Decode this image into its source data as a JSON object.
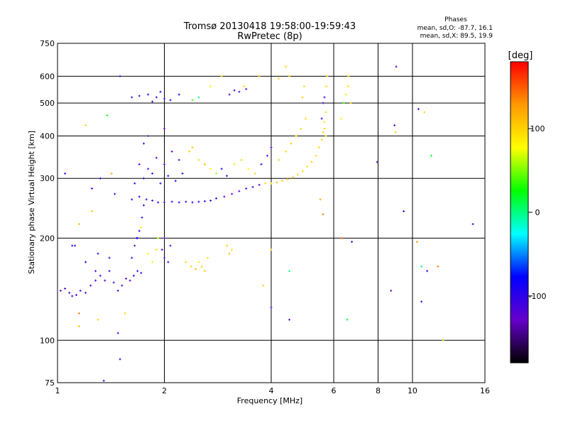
{
  "chart_data": {
    "type": "scatter",
    "title": "Tromsø 20130418 19:58:00-19:59:43",
    "subtitle": "RwPretec (8p)",
    "xlabel": "Frequency [MHz]",
    "ylabel": "Stationary phase Virtual Height [km]",
    "x_scale": "log",
    "y_scale": "log",
    "xlim": [
      1,
      16
    ],
    "ylim": [
      75,
      750
    ],
    "x_ticks": [
      "1",
      "2",
      "4",
      "6",
      "8",
      "10",
      "16"
    ],
    "y_ticks": [
      "75",
      "100",
      "200",
      "300",
      "400",
      "500",
      "600",
      "750"
    ],
    "grid": true,
    "phases_box": {
      "title": "Phases",
      "line_o": "mean, sd,O: -87.7, 16.1",
      "line_x": "mean, sd,X:  89.5, 19.9"
    },
    "colorbar": {
      "label": "[deg]",
      "range": [
        -180,
        180
      ],
      "ticks": [
        "100",
        "0",
        "-100"
      ],
      "stops": [
        "#ff0000",
        "#ff9900",
        "#ffff00",
        "#00ff00",
        "#00ffff",
        "#0000ff",
        "#6600cc",
        "#000000"
      ]
    },
    "points": [
      [
        1.02,
        140,
        -110
      ],
      [
        1.05,
        142,
        -115
      ],
      [
        1.08,
        138,
        -120
      ],
      [
        1.1,
        135,
        -112
      ],
      [
        1.13,
        136,
        -118
      ],
      [
        1.16,
        140,
        -108
      ],
      [
        1.2,
        138,
        -114
      ],
      [
        1.24,
        145,
        -110
      ],
      [
        1.28,
        150,
        -106
      ],
      [
        1.32,
        155,
        -112
      ],
      [
        1.36,
        150,
        -118
      ],
      [
        1.4,
        160,
        -102
      ],
      [
        1.44,
        148,
        -110
      ],
      [
        1.48,
        140,
        -108
      ],
      [
        1.52,
        145,
        -116
      ],
      [
        1.56,
        152,
        -120
      ],
      [
        1.6,
        150,
        -110
      ],
      [
        1.64,
        155,
        -98
      ],
      [
        1.68,
        160,
        -104
      ],
      [
        1.72,
        158,
        -112
      ],
      [
        1.1,
        190,
        -100
      ],
      [
        1.2,
        170,
        -95
      ],
      [
        1.3,
        180,
        -105
      ],
      [
        1.4,
        175,
        -90
      ],
      [
        1.28,
        160,
        -118
      ],
      [
        1.62,
        175,
        -100
      ],
      [
        1.65,
        190,
        -110
      ],
      [
        1.67,
        200,
        -95
      ],
      [
        1.7,
        210,
        -105
      ],
      [
        1.73,
        230,
        -100
      ],
      [
        1.75,
        250,
        -92
      ],
      [
        1.8,
        180,
        80
      ],
      [
        1.85,
        170,
        70
      ],
      [
        1.9,
        185,
        95
      ],
      [
        1.92,
        200,
        60
      ],
      [
        1.97,
        185,
        -115
      ],
      [
        2.0,
        175,
        -120
      ],
      [
        2.05,
        170,
        -110
      ],
      [
        2.08,
        190,
        -118
      ],
      [
        2.0,
        200,
        -125
      ],
      [
        2.3,
        170,
        100
      ],
      [
        2.38,
        165,
        95
      ],
      [
        2.45,
        162,
        110
      ],
      [
        2.5,
        170,
        90
      ],
      [
        2.55,
        165,
        100
      ],
      [
        2.6,
        160,
        105
      ],
      [
        2.65,
        175,
        95
      ],
      [
        3.0,
        190,
        100
      ],
      [
        3.05,
        180,
        110
      ],
      [
        3.1,
        185,
        90
      ],
      [
        1.62,
        260,
        -100
      ],
      [
        1.7,
        265,
        -95
      ],
      [
        1.78,
        260,
        -105
      ],
      [
        1.85,
        258,
        -100
      ],
      [
        1.92,
        255,
        -98
      ],
      [
        2.0,
        255,
        -104
      ],
      [
        2.1,
        256,
        -100
      ],
      [
        2.2,
        255,
        -96
      ],
      [
        2.3,
        256,
        -102
      ],
      [
        2.4,
        255,
        -100
      ],
      [
        2.5,
        256,
        -98
      ],
      [
        2.6,
        257,
        -104
      ],
      [
        2.7,
        258,
        -100
      ],
      [
        2.8,
        262,
        -96
      ],
      [
        2.95,
        265,
        -120
      ],
      [
        3.1,
        270,
        -125
      ],
      [
        3.25,
        275,
        -118
      ],
      [
        3.4,
        280,
        -122
      ],
      [
        3.55,
        283,
        -110
      ],
      [
        3.7,
        287,
        -115
      ],
      [
        3.85,
        290,
        95
      ],
      [
        4.0,
        290,
        100
      ],
      [
        4.15,
        292,
        110
      ],
      [
        4.3,
        295,
        105
      ],
      [
        4.45,
        298,
        100
      ],
      [
        4.6,
        302,
        108
      ],
      [
        4.75,
        308,
        100
      ],
      [
        4.9,
        315,
        95
      ],
      [
        5.05,
        325,
        90
      ],
      [
        5.2,
        335,
        100
      ],
      [
        5.35,
        350,
        95
      ],
      [
        5.45,
        370,
        100
      ],
      [
        5.55,
        390,
        105
      ],
      [
        5.6,
        410,
        100
      ],
      [
        5.65,
        440,
        95
      ],
      [
        5.7,
        470,
        100
      ],
      [
        1.65,
        290,
        -95
      ],
      [
        1.75,
        300,
        -100
      ],
      [
        1.85,
        310,
        -98
      ],
      [
        1.95,
        290,
        -104
      ],
      [
        2.05,
        305,
        -100
      ],
      [
        2.15,
        295,
        -96
      ],
      [
        2.25,
        310,
        -102
      ],
      [
        1.7,
        330,
        -110
      ],
      [
        1.8,
        320,
        -115
      ],
      [
        1.9,
        345,
        -108
      ],
      [
        2.0,
        330,
        -112
      ],
      [
        1.75,
        380,
        -100
      ],
      [
        1.8,
        400,
        -115
      ],
      [
        2.0,
        420,
        -110
      ],
      [
        2.1,
        360,
        -120
      ],
      [
        2.2,
        340,
        -118
      ],
      [
        2.35,
        360,
        100
      ],
      [
        2.4,
        370,
        105
      ],
      [
        2.5,
        340,
        95
      ],
      [
        2.6,
        330,
        110
      ],
      [
        2.7,
        320,
        85
      ],
      [
        2.8,
        310,
        60
      ],
      [
        2.9,
        320,
        -100
      ],
      [
        3.0,
        305,
        -110
      ],
      [
        3.15,
        330,
        90
      ],
      [
        3.3,
        340,
        100
      ],
      [
        3.45,
        320,
        80
      ],
      [
        3.6,
        310,
        100
      ],
      [
        3.75,
        330,
        -100
      ],
      [
        3.9,
        350,
        -120
      ],
      [
        4.0,
        370,
        -110
      ],
      [
        4.2,
        340,
        100
      ],
      [
        4.4,
        360,
        95
      ],
      [
        4.55,
        380,
        105
      ],
      [
        4.7,
        400,
        90
      ],
      [
        4.85,
        420,
        100
      ],
      [
        5.0,
        450,
        95
      ],
      [
        5.6,
        500,
        -110
      ],
      [
        5.65,
        520,
        -115
      ],
      [
        5.72,
        560,
        95
      ],
      [
        5.75,
        600,
        100
      ],
      [
        5.55,
        450,
        -100
      ],
      [
        4.9,
        520,
        100
      ],
      [
        4.95,
        560,
        95
      ],
      [
        4.2,
        590,
        100
      ],
      [
        4.4,
        640,
        100
      ],
      [
        4.5,
        600,
        105
      ],
      [
        3.7,
        600,
        110
      ],
      [
        3.35,
        560,
        95
      ],
      [
        2.9,
        600,
        100
      ],
      [
        3.05,
        530,
        -110
      ],
      [
        3.15,
        545,
        -115
      ],
      [
        3.25,
        540,
        -112
      ],
      [
        3.4,
        550,
        -120
      ],
      [
        1.62,
        520,
        -100
      ],
      [
        1.7,
        525,
        -104
      ],
      [
        1.8,
        530,
        -98
      ],
      [
        1.9,
        520,
        -100
      ],
      [
        2.0,
        515,
        -106
      ],
      [
        2.08,
        510,
        -100
      ],
      [
        2.2,
        530,
        -96
      ],
      [
        2.5,
        520,
        0
      ],
      [
        2.4,
        510,
        40
      ],
      [
        2.7,
        560,
        80
      ],
      [
        1.95,
        540,
        -102
      ],
      [
        1.85,
        505,
        -110
      ],
      [
        6.5,
        530,
        90
      ],
      [
        6.6,
        560,
        95
      ],
      [
        6.7,
        500,
        100
      ],
      [
        6.6,
        600,
        100
      ],
      [
        6.3,
        450,
        90
      ],
      [
        6.4,
        500,
        30
      ],
      [
        5.65,
        420,
        100
      ],
      [
        5.7,
        400,
        105
      ],
      [
        1.5,
        600,
        -110
      ],
      [
        1.38,
        460,
        30
      ],
      [
        1.2,
        430,
        100
      ],
      [
        1.32,
        300,
        -100
      ],
      [
        1.25,
        280,
        -110
      ],
      [
        1.42,
        310,
        120
      ],
      [
        1.45,
        270,
        -100
      ],
      [
        1.15,
        220,
        110
      ],
      [
        1.25,
        240,
        100
      ],
      [
        1.05,
        310,
        -110
      ],
      [
        1.12,
        190,
        -100
      ],
      [
        1.15,
        120,
        140
      ],
      [
        1.15,
        110,
        110
      ],
      [
        1.3,
        115,
        100
      ],
      [
        1.48,
        105,
        -110
      ],
      [
        1.5,
        88,
        -100
      ],
      [
        1.55,
        120,
        100
      ],
      [
        1.35,
        76,
        -105
      ],
      [
        1.68,
        200,
        -100
      ],
      [
        1.72,
        215,
        90
      ],
      [
        4.0,
        185,
        110
      ],
      [
        3.8,
        145,
        100
      ],
      [
        4.0,
        125,
        -110
      ],
      [
        4.5,
        115,
        -110
      ],
      [
        4.5,
        160,
        0
      ],
      [
        5.5,
        260,
        120
      ],
      [
        5.6,
        235,
        140
      ],
      [
        6.3,
        200,
        150
      ],
      [
        6.75,
        195,
        -100
      ],
      [
        6.55,
        115,
        20
      ],
      [
        7.95,
        335,
        -120
      ],
      [
        8.9,
        430,
        -110
      ],
      [
        8.7,
        140,
        -125
      ],
      [
        8.95,
        410,
        100
      ],
      [
        9.0,
        640,
        -110
      ],
      [
        9.45,
        240,
        -100
      ],
      [
        10.4,
        480,
        -110
      ],
      [
        10.3,
        195,
        130
      ],
      [
        10.8,
        470,
        100
      ],
      [
        10.6,
        165,
        0
      ],
      [
        10.6,
        130,
        -100
      ],
      [
        11.3,
        350,
        20
      ],
      [
        11.8,
        165,
        140
      ],
      [
        12.2,
        100,
        60
      ],
      [
        14.8,
        220,
        -105
      ],
      [
        11.0,
        160,
        -100
      ]
    ]
  }
}
